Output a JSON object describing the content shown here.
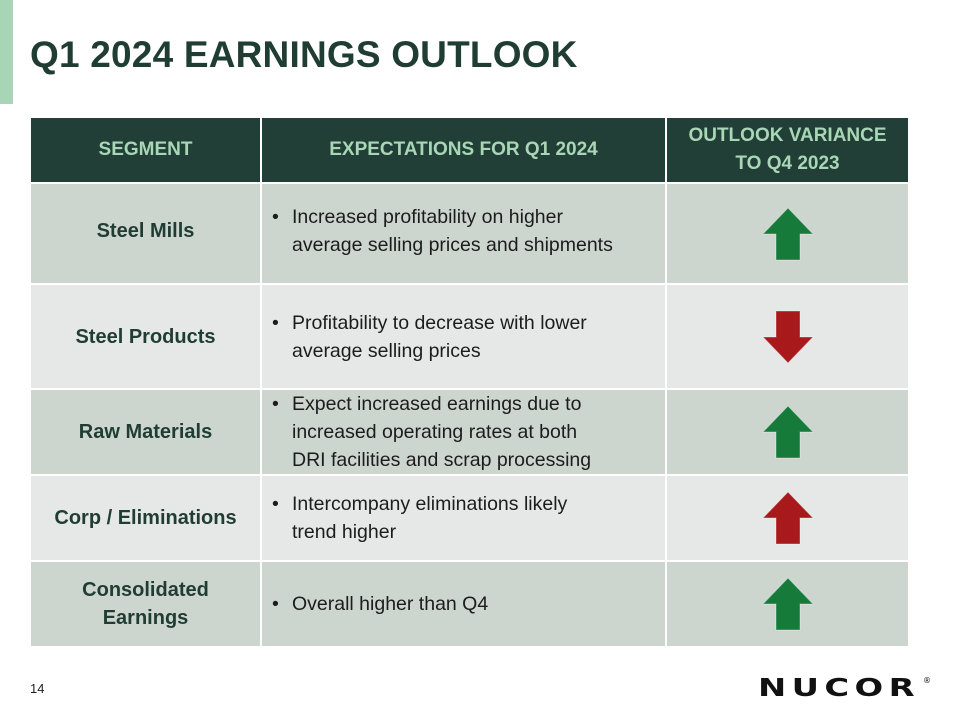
{
  "slide": {
    "title": "Q1 2024 EARNINGS OUTLOOK",
    "page_number": "14",
    "logo_text": "NUCOR",
    "logo_mark": "®"
  },
  "table": {
    "headers": {
      "segment": "SEGMENT",
      "expectations": "EXPECTATIONS FOR Q1 2024",
      "variance_line1": "OUTLOOK VARIANCE",
      "variance_line2": "TO Q4 2023"
    },
    "rows": [
      {
        "segment_line1": "Steel Mills",
        "segment_line2": "",
        "expectation_line1": "Increased profitability on higher",
        "expectation_line2": "average selling prices and shipments",
        "expectation_line3": "",
        "variance": "up",
        "arrow_color": "#157a3a"
      },
      {
        "segment_line1": "Steel Products",
        "segment_line2": "",
        "expectation_line1": "Profitability to decrease with lower",
        "expectation_line2": "average selling prices",
        "expectation_line3": "",
        "variance": "down",
        "arrow_color": "#a8191c"
      },
      {
        "segment_line1": "Raw Materials",
        "segment_line2": "",
        "expectation_line1": "Expect increased earnings due to",
        "expectation_line2": "increased operating rates at both",
        "expectation_line3": "DRI facilities and scrap processing",
        "variance": "up",
        "arrow_color": "#157a3a"
      },
      {
        "segment_line1": "Corp / Eliminations",
        "segment_line2": "",
        "expectation_line1": "Intercompany eliminations likely",
        "expectation_line2": "trend higher",
        "expectation_line3": "",
        "variance": "up",
        "arrow_color": "#a8191c"
      },
      {
        "segment_line1": "Consolidated",
        "segment_line2": "Earnings",
        "expectation_line1": "Overall higher than Q4",
        "expectation_line2": "",
        "expectation_line3": "",
        "variance": "up",
        "arrow_color": "#157a3a"
      }
    ]
  },
  "colors": {
    "header_bg": "#213f36",
    "header_text": "#a9d6b6",
    "title": "#1f3d33",
    "row_dark": "#cdd5cf",
    "row_light": "#e6e8e7",
    "accent": "#a8d5b5",
    "arrow_green": "#157a3a",
    "arrow_red": "#a8191c"
  }
}
